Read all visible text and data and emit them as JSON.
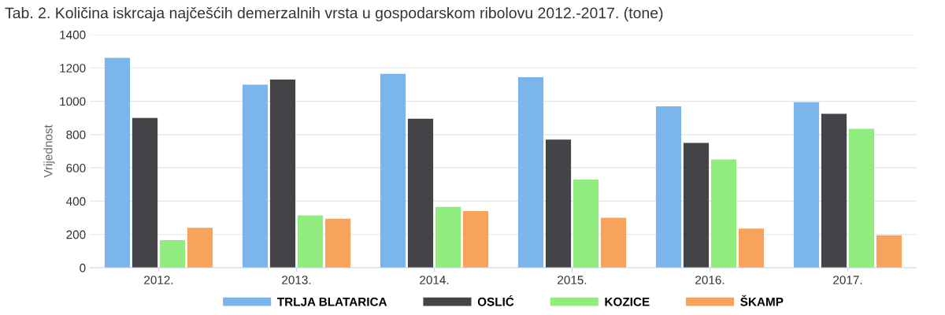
{
  "chart_data": {
    "type": "bar",
    "title": "Tab. 2. Količina iskrcaja najčešćih demerzalnih vrsta u gospodarskom ribolovu 2012.-2017. (tone)",
    "ylabel": "Vrijednost",
    "categories": [
      "2012.",
      "2013.",
      "2014.",
      "2015.",
      "2016.",
      "2017."
    ],
    "series": [
      {
        "name": "TRLJA BLATARICA",
        "color": "#7cb5ec",
        "values": [
          1260,
          1100,
          1165,
          1145,
          970,
          995
        ]
      },
      {
        "name": "OSLIĆ",
        "color": "#434348",
        "values": [
          900,
          1130,
          895,
          770,
          750,
          925
        ]
      },
      {
        "name": "KOZICE",
        "color": "#90ed7d",
        "values": [
          165,
          315,
          365,
          530,
          650,
          835
        ]
      },
      {
        "name": "ŠKAMP",
        "color": "#f7a35c",
        "values": [
          240,
          295,
          340,
          300,
          235,
          195
        ]
      }
    ],
    "ylim": [
      0,
      1400
    ],
    "yticks": [
      0,
      200,
      400,
      600,
      800,
      1000,
      1200,
      1400
    ],
    "grid": "y",
    "legend": "bottom"
  }
}
